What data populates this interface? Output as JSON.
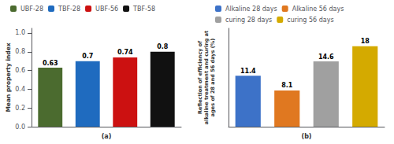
{
  "chart_data": [
    {
      "type": "bar",
      "categories": [
        "UBF-28",
        "TBF-28",
        "UBF-56",
        "TBF-58"
      ],
      "values": [
        0.63,
        0.7,
        0.74,
        0.8
      ],
      "colors": [
        "#4b6b2f",
        "#1f6bbf",
        "#cc1111",
        "#111111"
      ],
      "xlabel": "(a)",
      "ylabel": "Mean property index",
      "ylim": [
        0,
        1.05
      ],
      "yticks": [
        {
          "value": 0,
          "label": "0.0"
        },
        0.2,
        0.4,
        0.6,
        0.8,
        {
          "value": 1.0,
          "label": "1.0"
        }
      ],
      "data_labels": true,
      "legend": "upper left",
      "grid": false,
      "tick_labels": "y"
    },
    {
      "type": "bar",
      "categories": [
        "Alkaline 28 days",
        "Alkaline 56 days",
        "curing 28 days",
        "curing 56 days"
      ],
      "values": [
        11.4,
        8.1,
        14.6,
        18
      ],
      "colors": [
        "#3d72c8",
        "#e07820",
        "#a0a0a0",
        "#d4aa00"
      ],
      "xlabel": "(b)",
      "ylabel": "Reflection of efficiency of\nalkaline treatment and curing at\nages of 28 and 56 days (%)",
      "ylim": [
        0,
        22
      ],
      "data_labels": true,
      "legend": "upper left",
      "grid": false,
      "tick_labels": false
    }
  ]
}
